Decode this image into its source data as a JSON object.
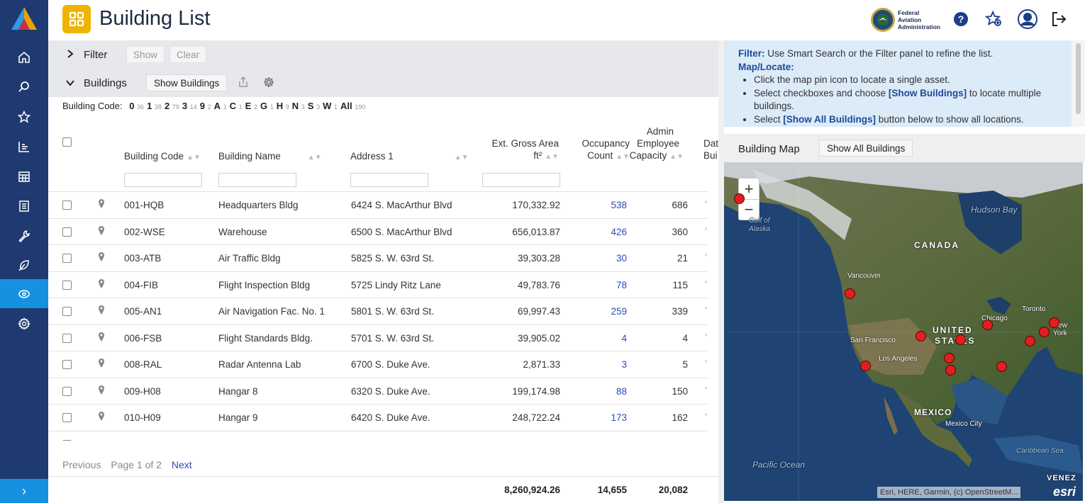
{
  "app": {
    "title": "Building List"
  },
  "header": {
    "agency_line1": "Federal",
    "agency_line2": "Aviation",
    "agency_line3": "Administration"
  },
  "filter": {
    "label": "Filter",
    "show": "Show",
    "clear": "Clear"
  },
  "buildings_bar": {
    "label": "Buildings",
    "show_buildings": "Show Buildings"
  },
  "code_filter": {
    "label": "Building Code:",
    "codes": [
      {
        "code": "0",
        "count": "36"
      },
      {
        "code": "1",
        "count": "38"
      },
      {
        "code": "2",
        "count": "79"
      },
      {
        "code": "3",
        "count": "14"
      },
      {
        "code": "9",
        "count": "2"
      },
      {
        "code": "A",
        "count": "1"
      },
      {
        "code": "C",
        "count": "1"
      },
      {
        "code": "E",
        "count": "2"
      },
      {
        "code": "G",
        "count": "1"
      },
      {
        "code": "H",
        "count": "9"
      },
      {
        "code": "N",
        "count": "3"
      },
      {
        "code": "S",
        "count": "3"
      },
      {
        "code": "W",
        "count": "1"
      },
      {
        "code": "All",
        "count": "190"
      }
    ]
  },
  "table": {
    "columns": {
      "code": "Building Code",
      "name": "Building Name",
      "address": "Address 1",
      "area_line1": "Ext. Gross Area",
      "area_line2": "ft²",
      "occ_line1": "Occupancy",
      "occ_line2": "Count",
      "admin_line1": "Admin",
      "admin_line2": "Employee",
      "admin_line3": "Capacity",
      "date_line1": "Dat",
      "date_line2": "Bui"
    },
    "rows": [
      {
        "code": "001-HQB",
        "name": "Headquarters Bldg",
        "address": "6424 S. MacArthur Blvd",
        "area": "170,332.92",
        "occupancy": "538",
        "admin": "686"
      },
      {
        "code": "002-WSE",
        "name": "Warehouse",
        "address": "6500 S. MacArthur Blvd",
        "area": "656,013.87",
        "occupancy": "426",
        "admin": "360"
      },
      {
        "code": "003-ATB",
        "name": "Air Traffic Bldg",
        "address": "5825 S. W. 63rd St.",
        "area": "39,303.28",
        "occupancy": "30",
        "admin": "21"
      },
      {
        "code": "004-FIB",
        "name": "Flight Inspection Bldg",
        "address": "5725 Lindy Ritz Lane",
        "area": "49,783.76",
        "occupancy": "78",
        "admin": "115"
      },
      {
        "code": "005-AN1",
        "name": "Air Navigation Fac. No. 1",
        "address": "5801 S. W. 63rd St.",
        "area": "69,997.43",
        "occupancy": "259",
        "admin": "339"
      },
      {
        "code": "006-FSB",
        "name": "Flight Standards Bldg.",
        "address": "5701 S. W. 63rd St.",
        "area": "39,905.02",
        "occupancy": "4",
        "admin": "4"
      },
      {
        "code": "008-RAL",
        "name": "Radar Antenna Lab",
        "address": "6700 S. Duke Ave.",
        "area": "2,871.33",
        "occupancy": "3",
        "admin": "5"
      },
      {
        "code": "009-H08",
        "name": "Hangar 8",
        "address": "6320 S. Duke Ave.",
        "area": "199,174.98",
        "occupancy": "88",
        "admin": "150"
      },
      {
        "code": "010-H09",
        "name": "Hangar 9",
        "address": "6420 S. Duke Ave.",
        "area": "248,722.24",
        "occupancy": "173",
        "admin": "162"
      }
    ],
    "totals": {
      "area": "8,260,924.26",
      "occupancy": "14,655",
      "admin": "20,082"
    }
  },
  "pagination": {
    "previous": "Previous",
    "page_info": "Page 1 of 2",
    "next": "Next"
  },
  "info": {
    "filter_label": "Filter:",
    "filter_text": " Use Smart Search or the Filter panel to refine the list.",
    "maplocate_label": "Map/Locate:",
    "bullet1": "Click the map pin icon to locate a single asset.",
    "bullet2_a": "Select checkboxes and choose ",
    "bullet2_b": "[Show Buildings]",
    "bullet2_c": " to locate multiple buildings.",
    "bullet3_a": "Select ",
    "bullet3_b": "[Show All Buildings]",
    "bullet3_c": " button below to show all locations."
  },
  "map": {
    "title": "Building Map",
    "show_all": "Show All Buildings",
    "zoom_in": "+",
    "zoom_out": "−",
    "labels": {
      "hudson": "Hudson Bay",
      "canada": "CANADA",
      "gulf": "Gulf of",
      "alaska": "Alaska",
      "vancouver": "Vancouver",
      "toronto": "Toronto",
      "chicago": "Chicago",
      "newyork": "New York",
      "sanfrancisco": "San Francisco",
      "losangeles": "Los Angeles",
      "united": "UNITED",
      "states": "STATES",
      "mexico": "MEXICO",
      "mexicocity": "Mexico City",
      "caribbean": "Caribbean Sea",
      "pacific": "Pacific Ocean",
      "venez": "VENEZ"
    },
    "attribution": "Esri, HERE, Garmin, (c) OpenStreetM...",
    "esri": "esri"
  },
  "colors": {
    "nav_bg": "#1f3a70",
    "nav_active": "#1591e0",
    "accent": "#f0b400",
    "link": "#2b4db3",
    "marker": "#e01f1f"
  }
}
